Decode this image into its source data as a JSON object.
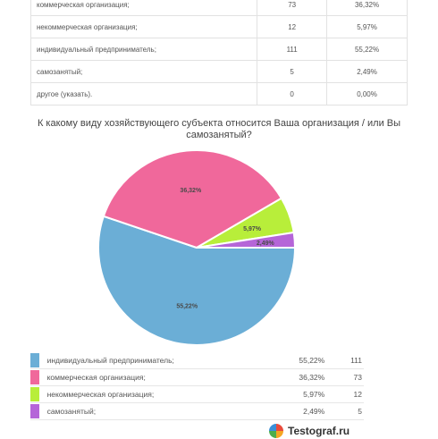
{
  "top_table": {
    "rows": [
      {
        "label": "коммерческая организация;",
        "count": "73",
        "pct": "36,32%"
      },
      {
        "label": "некоммерческая организация;",
        "count": "12",
        "pct": "5,97%"
      },
      {
        "label": "индивидуальный предприниматель;",
        "count": "111",
        "pct": "55,22%"
      },
      {
        "label": "самозанятый;",
        "count": "5",
        "pct": "2,49%"
      },
      {
        "label": "другое (указать).",
        "count": "0",
        "pct": "0,00%"
      }
    ]
  },
  "chart_data": {
    "type": "pie",
    "title": "К какому виду хозяйствующего субъекта относится Ваша организация / или Вы самозанятый?",
    "start_angle_deg": 0,
    "slices": [
      {
        "label": "индивидуальный предприниматель;",
        "value": 111,
        "percent": 55.22,
        "percent_label": "55,22%",
        "color": "#6baed6"
      },
      {
        "label": "коммерческая организация;",
        "value": 73,
        "percent": 36.32,
        "percent_label": "36,32%",
        "color": "#f0689b"
      },
      {
        "label": "некоммерческая организация;",
        "value": 12,
        "percent": 5.97,
        "percent_label": "5,97%",
        "color": "#b8ee3a"
      },
      {
        "label": "самозанятый;",
        "value": 5,
        "percent": 2.49,
        "percent_label": "2,49%",
        "color": "#b565d8"
      }
    ],
    "legend_placement": "bottom"
  },
  "logo": {
    "text": "Testograf.ru",
    "colors": [
      "#e94b3c",
      "#f5a623",
      "#4cae4c",
      "#3a8fd8"
    ]
  }
}
